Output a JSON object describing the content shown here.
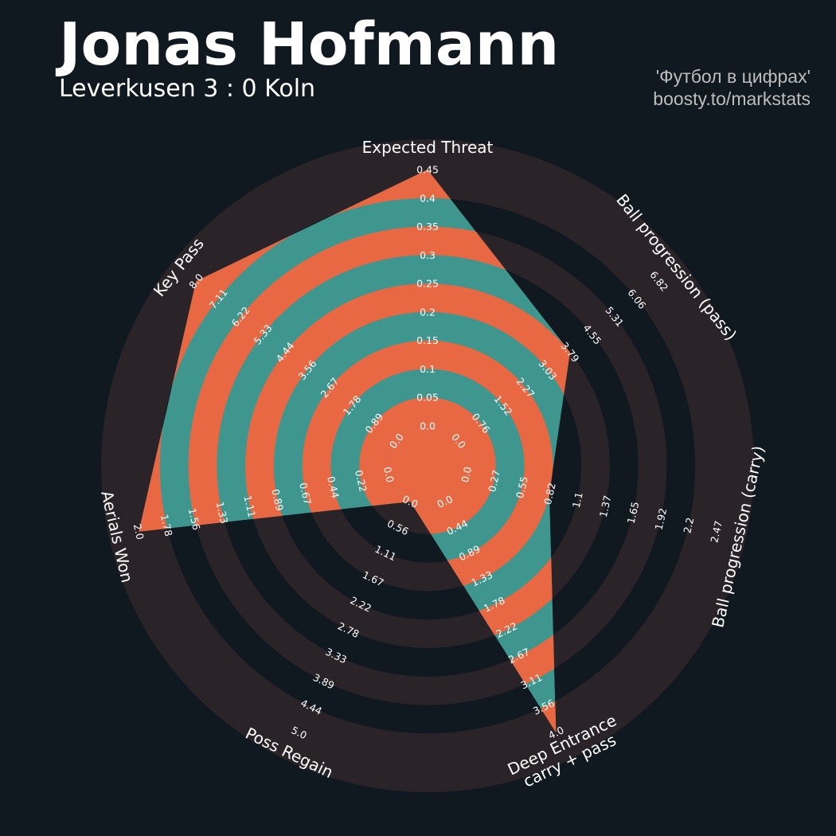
{
  "header": {
    "player_name": "Jonas Hofmann",
    "match": "Leverkusen 3 : 0 Koln",
    "credit_line1": "'Футбол в цифрах'",
    "credit_line2": "boosty.to/markstats"
  },
  "colors": {
    "background": "#101820",
    "rings": "#2a2429",
    "radar_fill": "#3e968e",
    "alt_ring": "#e76843",
    "text": "#ffffff",
    "credit": "#bdbdbd"
  },
  "chart_data": {
    "type": "radar",
    "params": [
      {
        "label": "Expected Threat",
        "value": 0.45,
        "ticks": [
          "0.0",
          "0.05",
          "0.1",
          "0.15",
          "0.2",
          "0.25",
          "0.3",
          "0.35",
          "0.4",
          "0.45"
        ]
      },
      {
        "label": "Ball progression (pass)",
        "value": 3.79,
        "ticks": [
          "0.0",
          "0.76",
          "1.52",
          "2.27",
          "3.03",
          "3.79",
          "4.55",
          "5.31",
          "6.06",
          "6.82"
        ]
      },
      {
        "label": "Ball progression (carry)",
        "value": 0.82,
        "ticks": [
          "0.0",
          "0.27",
          "0.55",
          "0.82",
          "1.1",
          "1.37",
          "1.65",
          "1.92",
          "2.2",
          "2.47"
        ]
      },
      {
        "label": "Deep Entrance\ncarry + pass",
        "value": 4.0,
        "ticks": [
          "0.0",
          "0.44",
          "0.89",
          "1.33",
          "1.78",
          "2.22",
          "2.67",
          "3.11",
          "3.56",
          "4.0"
        ]
      },
      {
        "label": "Poss Regain",
        "value": 0.0,
        "ticks": [
          "0.0",
          "0.56",
          "1.11",
          "1.67",
          "2.22",
          "2.78",
          "3.33",
          "3.89",
          "4.44",
          "5.0"
        ]
      },
      {
        "label": "Aerials Won",
        "value": 2.0,
        "ticks": [
          "0.0",
          "0.22",
          "0.44",
          "0.67",
          "0.89",
          "1.11",
          "1.33",
          "1.56",
          "1.78",
          "2.0"
        ]
      },
      {
        "label": "Key Pass",
        "value": 8.0,
        "ticks": [
          "0.0",
          "0.89",
          "1.78",
          "2.67",
          "3.56",
          "4.44",
          "5.33",
          "6.22",
          "7.11",
          "8.0"
        ]
      }
    ],
    "grid": true,
    "legend": "none"
  }
}
